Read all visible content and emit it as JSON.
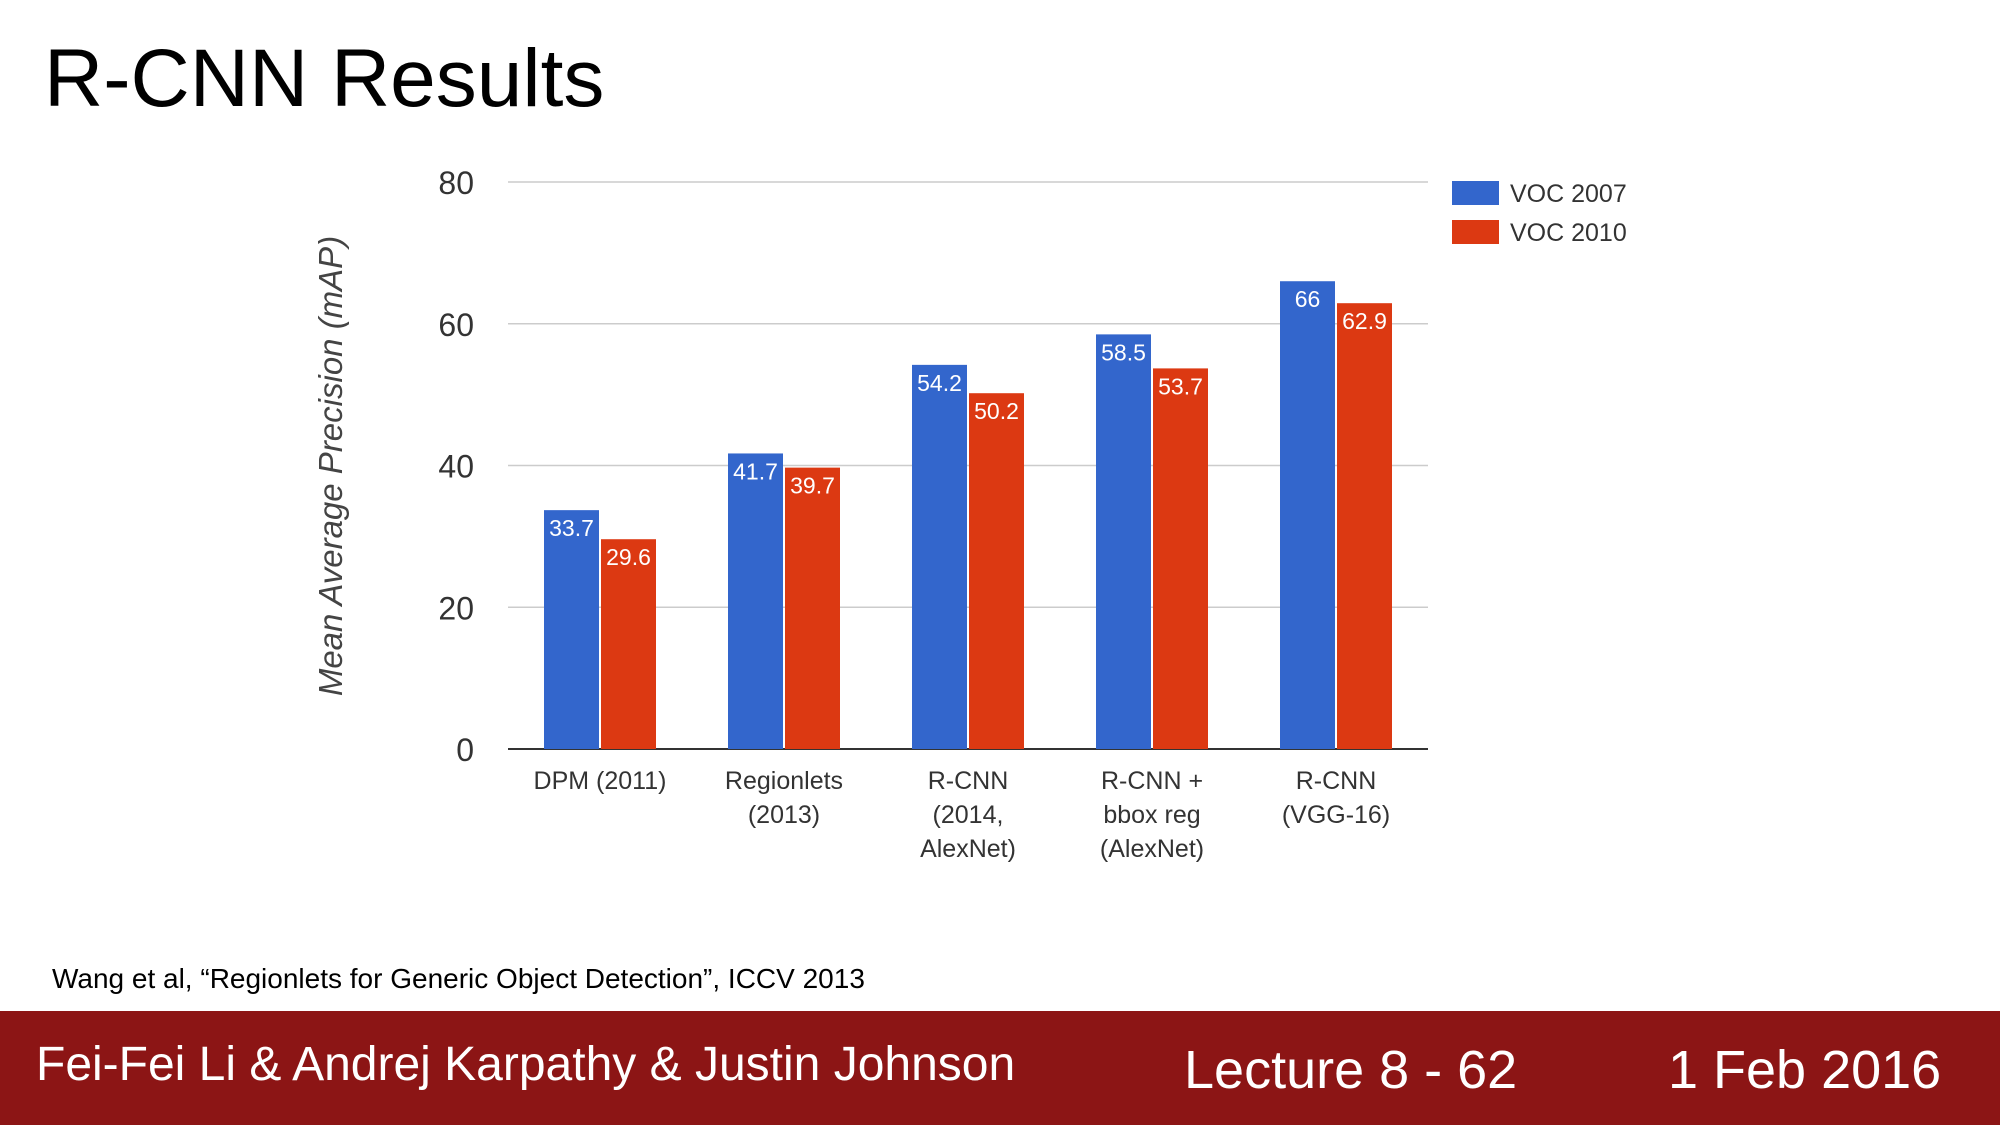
{
  "slide": {
    "title": "R-CNN Results",
    "citation": "Wang et al, “Regionlets for Generic Object Detection”, ICCV 2013"
  },
  "footer": {
    "authors": "Fei-Fei Li & Andrej Karpathy & Justin Johnson",
    "lecture": "Lecture 8 - 62",
    "date": "1 Feb 2016"
  },
  "chart_data": {
    "type": "bar",
    "title": "",
    "xlabel": "",
    "ylabel": "Mean Average Precision (mAP)",
    "ylim": [
      0,
      80
    ],
    "yticks": [
      0,
      20,
      40,
      60,
      80
    ],
    "grid": true,
    "legend_position": "top-right",
    "categories": [
      [
        "DPM (2011)"
      ],
      [
        "Regionlets",
        "(2013)"
      ],
      [
        "R-CNN",
        "(2014,",
        "AlexNet)"
      ],
      [
        "R-CNN +",
        "bbox reg",
        "(AlexNet)"
      ],
      [
        "R-CNN",
        "(VGG-16)"
      ]
    ],
    "series": [
      {
        "name": "VOC 2007",
        "color": "#3366cc",
        "values": [
          33.7,
          41.7,
          54.2,
          58.5,
          66
        ],
        "labels": [
          "33.7",
          "41.7",
          "54.2",
          "58.5",
          "66"
        ]
      },
      {
        "name": "VOC 2010",
        "color": "#dc3912",
        "values": [
          29.6,
          39.7,
          50.2,
          53.7,
          62.9
        ],
        "labels": [
          "29.6",
          "39.7",
          "50.2",
          "53.7",
          "62.9"
        ]
      }
    ]
  }
}
